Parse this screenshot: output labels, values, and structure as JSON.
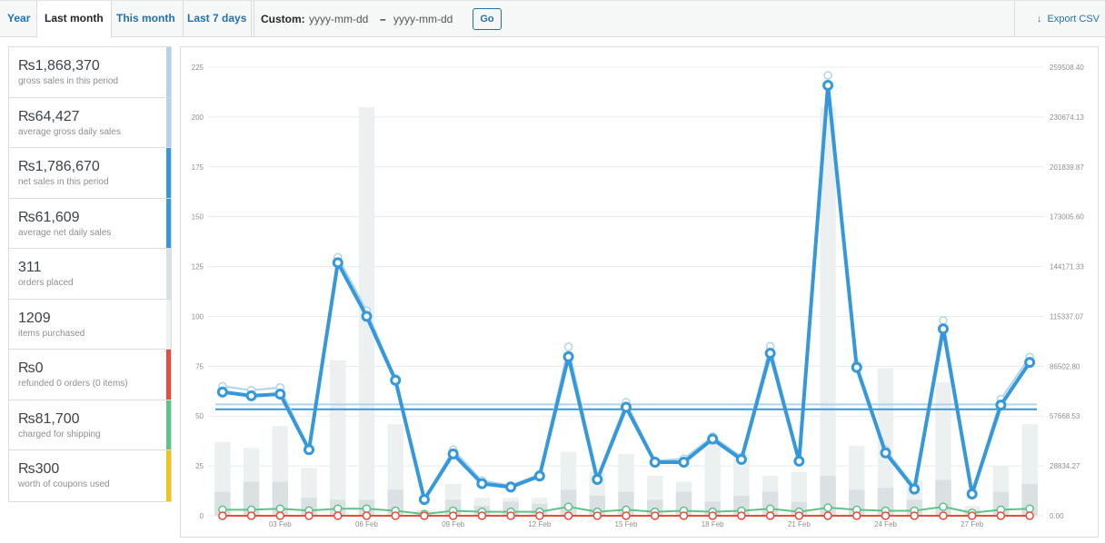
{
  "tabs": [
    {
      "label": "Year",
      "active": false
    },
    {
      "label": "Last month",
      "active": true
    },
    {
      "label": "This month",
      "active": false
    },
    {
      "label": "Last 7 days",
      "active": false
    }
  ],
  "custom": {
    "label": "Custom:",
    "from_placeholder": "yyyy-mm-dd",
    "separator": "–",
    "to_placeholder": "yyyy-mm-dd",
    "go_label": "Go"
  },
  "export_label": "Export CSV",
  "legend": [
    {
      "amount": "₨1,868,370",
      "desc": "gross sales in this period",
      "color": "#b1d4ea"
    },
    {
      "amount": "₨64,427",
      "desc": "average gross daily sales",
      "color": "#b1d4ea"
    },
    {
      "amount": "₨1,786,670",
      "desc": "net sales in this period",
      "color": "#3498db"
    },
    {
      "amount": "₨61,609",
      "desc": "average net daily sales",
      "color": "#3498db"
    },
    {
      "amount": "311",
      "desc": "orders placed",
      "color": "#dbe1e3"
    },
    {
      "amount": "1209",
      "desc": "items purchased",
      "color": "#ecf0f1"
    },
    {
      "amount": "₨0",
      "desc": "refunded 0 orders (0 items)",
      "color": "#e74c3c"
    },
    {
      "amount": "₨81,700",
      "desc": "charged for shipping",
      "color": "#5cc488"
    },
    {
      "amount": "₨300",
      "desc": "worth of coupons used",
      "color": "#f1c40f"
    }
  ],
  "chart_data": {
    "type": "line",
    "x": [
      "01 Feb",
      "02 Feb",
      "03 Feb",
      "04 Feb",
      "05 Feb",
      "06 Feb",
      "07 Feb",
      "08 Feb",
      "09 Feb",
      "10 Feb",
      "11 Feb",
      "12 Feb",
      "13 Feb",
      "14 Feb",
      "15 Feb",
      "16 Feb",
      "17 Feb",
      "18 Feb",
      "19 Feb",
      "20 Feb",
      "21 Feb",
      "22 Feb",
      "23 Feb",
      "24 Feb",
      "25 Feb",
      "26 Feb",
      "27 Feb",
      "28 Feb",
      "29 Feb"
    ],
    "x_tick_labels": [
      "03 Feb",
      "06 Feb",
      "09 Feb",
      "12 Feb",
      "15 Feb",
      "18 Feb",
      "21 Feb",
      "24 Feb",
      "27 Feb"
    ],
    "y_left": {
      "ticks": [
        "0",
        "25",
        "50",
        "75",
        "100",
        "125",
        "150",
        "175",
        "200",
        "225"
      ],
      "range": [
        0,
        225
      ]
    },
    "y_right": {
      "ticks": [
        "0.00",
        "28834.27",
        "57668.53",
        "86502.80",
        "115337.07",
        "144171.33",
        "173005.60",
        "201839.87",
        "230674.13",
        "259508.40"
      ],
      "range": [
        0,
        259508.4
      ]
    },
    "series": [
      {
        "kind": "bar",
        "axis": "left",
        "color": "#ecf0f1",
        "values": [
          37,
          34,
          45,
          24,
          78,
          205,
          46,
          3,
          16,
          9,
          9,
          9,
          32,
          22,
          31,
          20,
          17,
          36,
          31,
          20,
          22,
          205,
          35,
          74,
          18,
          67,
          5,
          25,
          46
        ]
      },
      {
        "kind": "bar",
        "axis": "left",
        "color": "#dbe1e3",
        "values": [
          12,
          17,
          17,
          9,
          8,
          8,
          13,
          1,
          8,
          5,
          7,
          6,
          13,
          10,
          12,
          8,
          12,
          7,
          10,
          12,
          7,
          20,
          13,
          14,
          8,
          18,
          3,
          12,
          16
        ]
      },
      {
        "kind": "line",
        "axis": "right",
        "color": "#b1d4ea",
        "values": [
          74900,
          72600,
          74200,
          38200,
          149600,
          118700,
          79400,
          9400,
          38200,
          20400,
          17500,
          24100,
          97700,
          22000,
          65700,
          31800,
          33000,
          45900,
          34100,
          98100,
          32500,
          254800,
          87700,
          38200,
          16600,
          113000,
          13000,
          67500,
          91800
        ]
      },
      {
        "kind": "line",
        "axis": "right",
        "color": "#3498db",
        "values": [
          71600,
          69400,
          70400,
          38200,
          146400,
          115400,
          78400,
          9400,
          35800,
          18600,
          16600,
          23000,
          92000,
          21000,
          62800,
          31000,
          31000,
          44400,
          32600,
          94000,
          31600,
          249000,
          85800,
          36400,
          15400,
          108100,
          12600,
          64000,
          88700
        ]
      },
      {
        "kind": "hline",
        "axis": "right",
        "color": "#b1d4ea",
        "value": 64427
      },
      {
        "kind": "hline",
        "axis": "right",
        "color": "#3498db",
        "value": 61609
      },
      {
        "kind": "line",
        "axis": "right",
        "color": "#5cc488",
        "values": [
          3500,
          3500,
          4100,
          3000,
          4100,
          4100,
          2900,
          1000,
          2900,
          2300,
          2300,
          2300,
          5200,
          2300,
          3500,
          2300,
          2900,
          2300,
          2900,
          4100,
          2300,
          4700,
          3500,
          2900,
          2900,
          5200,
          1700,
          3500,
          4100
        ]
      },
      {
        "kind": "line",
        "axis": "right",
        "color": "#e74c3c",
        "values": [
          0,
          0,
          0,
          0,
          0,
          0,
          0,
          0,
          0,
          0,
          0,
          0,
          0,
          0,
          0,
          0,
          0,
          0,
          0,
          0,
          0,
          0,
          0,
          0,
          0,
          0,
          0,
          0,
          0
        ]
      }
    ]
  }
}
